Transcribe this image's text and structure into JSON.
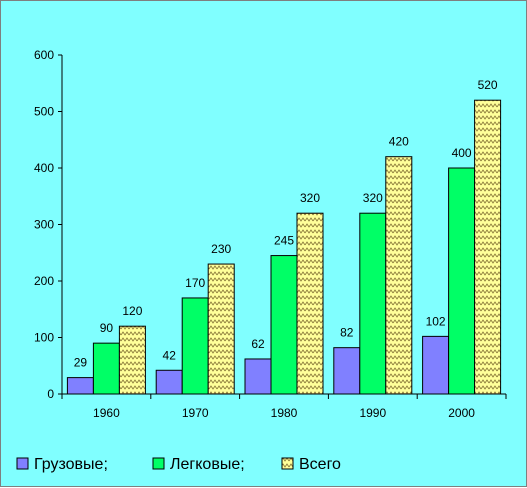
{
  "chart_data": {
    "type": "bar",
    "categories": [
      "1960",
      "1970",
      "1980",
      "1990",
      "2000"
    ],
    "series": [
      {
        "name": "Грузовые;",
        "values": [
          29,
          42,
          62,
          82,
          102
        ],
        "color": "#8080FF",
        "pattern": "solid"
      },
      {
        "name": "Легковые;",
        "values": [
          90,
          170,
          245,
          320,
          400
        ],
        "color": "#00FF66",
        "pattern": "solid"
      },
      {
        "name": "Всего",
        "values": [
          120,
          230,
          320,
          420,
          520
        ],
        "color": "#FFFF99",
        "pattern": "zigzag"
      }
    ],
    "ylim": [
      0,
      600
    ],
    "yticks": [
      "0",
      "100",
      "200",
      "300",
      "400",
      "500",
      "600"
    ],
    "data_labels": true,
    "grid": false,
    "legend_position": "bottom-left",
    "background": "#80FFFF"
  }
}
